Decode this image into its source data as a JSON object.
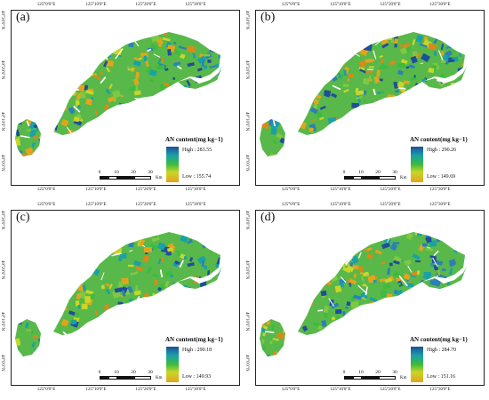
{
  "figure": {
    "top_ticks": [
      "125°0'0\"E",
      "125°10'0\"E",
      "125°20'0\"E",
      "125°30'0\"E"
    ],
    "bottom_ticks": [
      "125°0'0\"E",
      "125°10'0\"E",
      "125°20'0\"E",
      "125°30'0\"E"
    ],
    "left_ticks": [
      "40°0'0\"N",
      "40°10'0\"N",
      "40°20'0\"N",
      "40°30'0\"N"
    ],
    "legend_title": "AN content(mg kg−1)",
    "scale": {
      "labels": [
        "0",
        "10",
        "20",
        "30"
      ],
      "unit": "Km"
    },
    "colors": {
      "high": "#1f4e9a",
      "mid": "#3dbb3d",
      "low": "#e3a41c",
      "frame": "#222222"
    }
  },
  "panels": [
    {
      "label": "(a)",
      "high": "High : 283.55",
      "low": "Low : 155.74"
    },
    {
      "label": "(b)",
      "high": "High : 290.26",
      "low": "Low : 149.69"
    },
    {
      "label": "(c)",
      "high": "High : 290.18",
      "low": "Low : 149.93"
    },
    {
      "label": "(d)",
      "high": "High : 284.70",
      "low": "Low : 151.16"
    }
  ]
}
